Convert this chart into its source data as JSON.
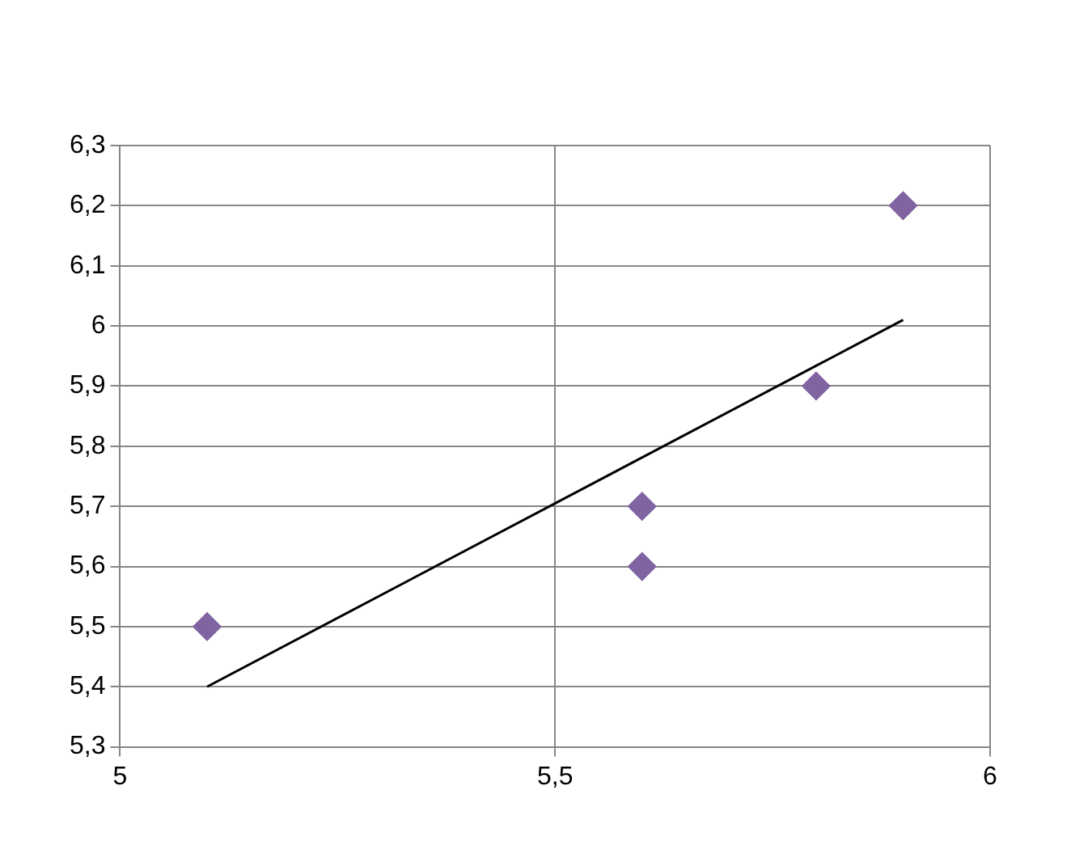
{
  "chart_data": {
    "type": "scatter",
    "x": [
      5.1,
      5.6,
      5.6,
      5.8,
      5.9
    ],
    "series": [
      {
        "color": "#8064a2",
        "values": [
          5.5,
          5.7,
          5.6,
          5.9,
          6.2
        ],
        "marker": "diamond"
      },
      {
        "type": "line",
        "x": [
          5.1,
          5.9
        ],
        "values": [
          5.4,
          6.01
        ],
        "color": "#000000",
        "marker": "none"
      }
    ],
    "xlim": [
      5,
      6
    ],
    "xticks": [
      5,
      {
        "value": 5.5,
        "label": "5,5"
      },
      6
    ],
    "ylim": [
      5.3,
      6.3
    ],
    "yticks": [
      {
        "value": 5.3,
        "label": "5,3"
      },
      {
        "value": 5.4,
        "label": "5,4"
      },
      {
        "value": 5.5,
        "label": "5,5"
      },
      {
        "value": 5.6,
        "label": "5,6"
      },
      {
        "value": 5.7,
        "label": "5,7"
      },
      {
        "value": 5.8,
        "label": "5,8"
      },
      {
        "value": 5.9,
        "label": "5,9"
      },
      6,
      {
        "value": 6.1,
        "label": "6,1"
      },
      {
        "value": 6.2,
        "label": "6,2"
      },
      {
        "value": 6.3,
        "label": "6,3"
      }
    ],
    "grid": true,
    "legend": false
  }
}
